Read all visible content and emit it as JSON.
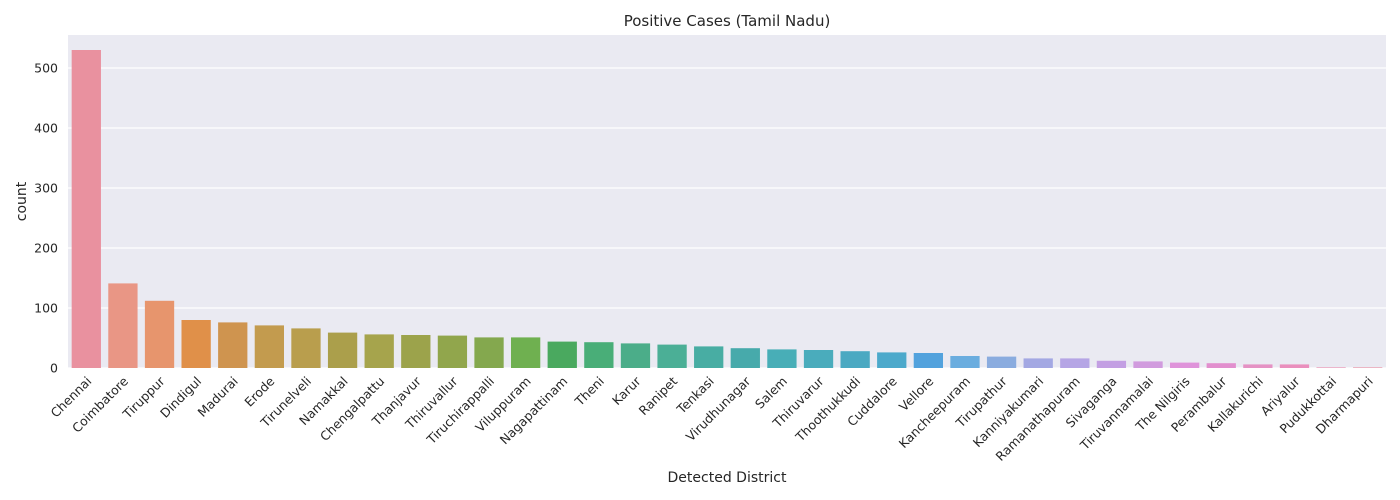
{
  "chart_data": {
    "type": "bar",
    "title": "Positive Cases (Tamil Nadu)",
    "xlabel": "Detected District",
    "ylabel": "count",
    "ylim": [
      0,
      555
    ],
    "yticks": [
      0,
      100,
      200,
      300,
      400,
      500
    ],
    "grid": true,
    "background": "#eaeaf2",
    "categories": [
      "Chennai",
      "Coimbatore",
      "Tiruppur",
      "Dindigul",
      "Madurai",
      "Erode",
      "Tirunelveli",
      "Namakkal",
      "Chengalpattu",
      "Thanjavur",
      "Thiruvallur",
      "Tiruchirappalli",
      "Viluppuram",
      "Nagapattinam",
      "Theni",
      "Karur",
      "Ranipet",
      "Tenkasi",
      "Virudhunagar",
      "Salem",
      "Thiruvarur",
      "Thoothukkudi",
      "Cuddalore",
      "Vellore",
      "Kancheepuram",
      "Tirupathur",
      "Kanniyakumari",
      "Ramanathapuram",
      "Sivaganga",
      "Tiruvannamalai",
      "The Nilgiris",
      "Perambalur",
      "Kallakurichi",
      "Ariyalur",
      "Pudukkottai",
      "Dharmapuri"
    ],
    "values": [
      530,
      141,
      112,
      80,
      76,
      71,
      66,
      59,
      56,
      55,
      54,
      51,
      51,
      44,
      43,
      41,
      39,
      36,
      33,
      31,
      30,
      28,
      26,
      25,
      20,
      19,
      16,
      16,
      12,
      11,
      9,
      8,
      6,
      6,
      1,
      1
    ],
    "colors": [
      "#e9919f",
      "#e99685",
      "#e7956d",
      "#e09049",
      "#cf944f",
      "#c39b4e",
      "#b99e4d",
      "#ab9f4b",
      "#a6a44c",
      "#9ca34b",
      "#91a64c",
      "#84a84e",
      "#6fb050",
      "#4aa95f",
      "#49ae78",
      "#4bad89",
      "#4baf96",
      "#48ada3",
      "#47aaab",
      "#48aeb7",
      "#4aacbc",
      "#4ba9c2",
      "#4ca9cb",
      "#52a2dd",
      "#6aaddf",
      "#8aacdf",
      "#a3a8e3",
      "#b5a5e5",
      "#c39fe3",
      "#d19bde",
      "#df93da",
      "#e28fce",
      "#e592c4",
      "#ea8fbd",
      "#ea91b0",
      "#e890a4"
    ]
  }
}
